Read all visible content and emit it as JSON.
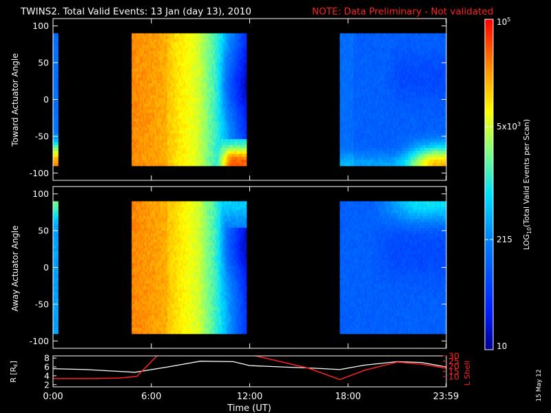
{
  "chart_data": {
    "type": "heatmap",
    "title": "TWINS2. Total Valid Events: 13 Jan (day  13), 2010",
    "note": "NOTE: Data Preliminary - Not validated",
    "xlabel": "Time (UT)",
    "x_ticks": [
      "0:00",
      "6:00",
      "12:00",
      "18:00",
      "23:59"
    ],
    "x_tick_hours": [
      0,
      6,
      12,
      18,
      23.98
    ],
    "xlim_hours": [
      0,
      24
    ],
    "panels": [
      {
        "name": "toward",
        "ylabel": "Toward Actuator Angle",
        "ylim": [
          -110,
          110
        ],
        "y_ticks": [
          100,
          50,
          0,
          -50,
          -100
        ],
        "data_blocks_hours": [
          [
            0,
            0.3
          ],
          [
            4.8,
            11.8
          ],
          [
            17.5,
            24
          ]
        ]
      },
      {
        "name": "away",
        "ylabel": "Away Actuator Angle",
        "ylim": [
          -110,
          110
        ],
        "y_ticks": [
          100,
          50,
          0,
          -50,
          -100
        ],
        "data_blocks_hours": [
          [
            0,
            0.3
          ],
          [
            4.8,
            11.8
          ],
          [
            17.5,
            24
          ]
        ]
      }
    ],
    "orbit_panel": {
      "r_label": "R [RE]",
      "r_ylim": [
        1.5,
        8.5
      ],
      "r_ticks": [
        8,
        6,
        4,
        2
      ],
      "r_hours": [
        0,
        2,
        4,
        5,
        7,
        9,
        11,
        12,
        14,
        16,
        17.5,
        19,
        21,
        22.5,
        24
      ],
      "r_values": [
        5.6,
        5.4,
        5.0,
        4.8,
        6.0,
        7.3,
        7.2,
        6.3,
        6.0,
        5.7,
        5.4,
        6.4,
        7.2,
        7.0,
        6.0
      ],
      "lshell_label": "L Shell",
      "lshell_ylim": [
        0,
        30
      ],
      "lshell_ticks": [
        30,
        25,
        20,
        15,
        10
      ],
      "lshell_segments": [
        {
          "hours": [
            0,
            2,
            4,
            5.1,
            6.4
          ],
          "values": [
            8,
            8,
            8.5,
            10,
            31
          ]
        },
        {
          "hours": [
            12.1,
            14,
            15.6,
            17.5,
            19,
            21,
            22.5,
            24
          ],
          "values": [
            31,
            24,
            18,
            7,
            16,
            24,
            22,
            18
          ]
        }
      ],
      "r_color": "#ffffff",
      "lshell_color": "#ff2020"
    },
    "colorbar": {
      "label": "LOG10(Total Valid Events per Scan)",
      "scale": "log",
      "range": [
        10,
        100000
      ],
      "ticks": [
        {
          "label": "10",
          "value": 10
        },
        {
          "label": "215",
          "value": 215
        },
        {
          "label": "5x10^3",
          "value": 5000
        },
        {
          "label": "10^5",
          "value": 100000
        }
      ]
    },
    "date_stamp": "15 May 12"
  }
}
